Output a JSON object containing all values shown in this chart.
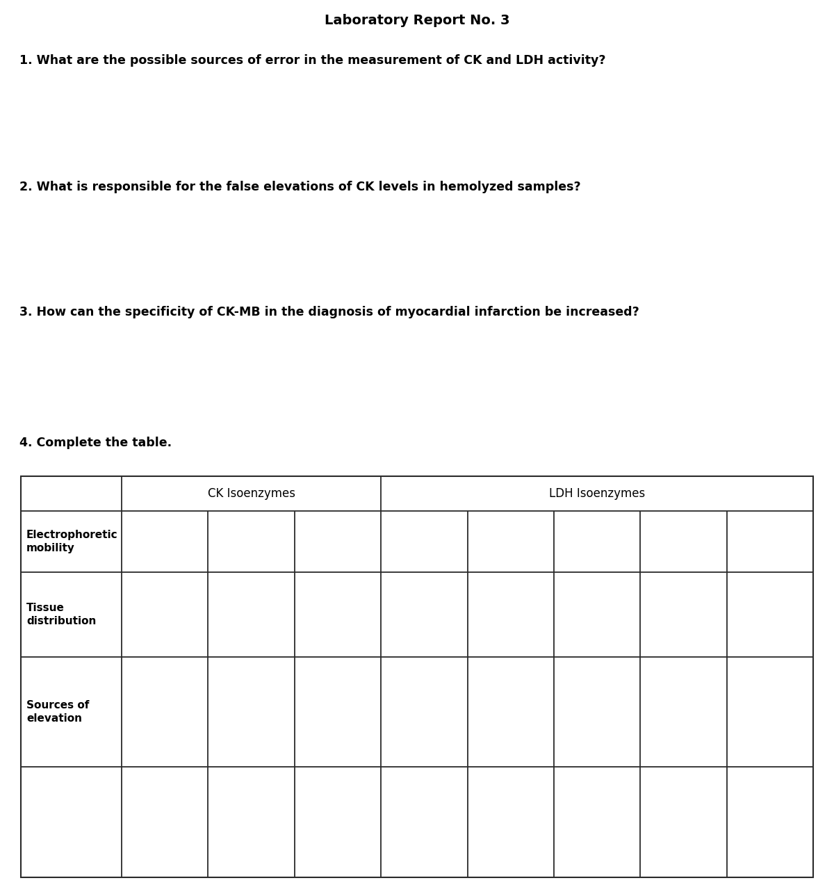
{
  "title": "Laboratory Report No. 3",
  "questions": [
    "1. What are the possible sources of error in the measurement of CK and LDH activity?",
    "2. What is responsible for the false elevations of CK levels in hemolyzed samples?",
    "3. How can the specificity of CK-MB in the diagnosis of myocardial infarction be increased?",
    "4. Complete the table."
  ],
  "bg_color": "#ffffff",
  "text_color": "#000000",
  "line_color": "#2a2a2a",
  "title_fontsize": 14,
  "question_fontsize": 12.5,
  "table_label_fontsize": 11,
  "table_header_fontsize": 12
}
